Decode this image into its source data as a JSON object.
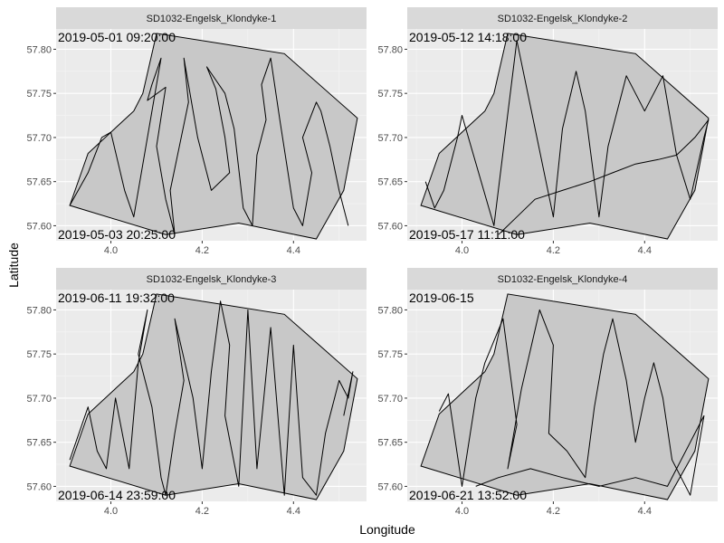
{
  "chart_data": {
    "type": "line",
    "xlabel": "Longitude",
    "ylabel": "Latitude",
    "xlim": [
      3.88,
      4.56
    ],
    "ylim": [
      57.583,
      57.823
    ],
    "x_ticks": [
      "4.0",
      "4.2",
      "4.4"
    ],
    "y_ticks": [
      "57.60",
      "57.65",
      "57.70",
      "57.75",
      "57.80"
    ],
    "grid": true,
    "colors": {
      "panel_bg": "#ebebeb",
      "strip_bg": "#d9d9d9",
      "area_fill": "#c8c8c8",
      "track": "#000000",
      "grid_major": "#ffffff"
    },
    "area_polygon": {
      "lon": [
        3.91,
        3.95,
        4.05,
        4.07,
        4.1,
        4.38,
        4.54,
        4.51,
        4.45,
        4.28,
        4.12,
        3.91
      ],
      "lat": [
        57.623,
        57.682,
        57.73,
        57.75,
        57.818,
        57.795,
        57.722,
        57.64,
        57.585,
        57.603,
        57.59,
        57.623
      ]
    },
    "panels": [
      {
        "title": "SD1032-Engelsk_Klondyke-1",
        "start_label": "2019-05-01 09:20:00",
        "end_label": "2019-05-03 20:25:00",
        "lon": [
          3.91,
          3.95,
          3.98,
          4.0,
          4.03,
          4.05,
          4.08,
          4.11,
          4.09,
          4.08,
          4.12,
          4.1,
          4.12,
          4.14,
          4.13,
          4.15,
          4.17,
          4.16,
          4.19,
          4.22,
          4.26,
          4.25,
          4.23,
          4.21,
          4.25,
          4.27,
          4.29,
          4.31,
          4.32,
          4.34,
          4.33,
          4.35,
          4.37,
          4.4,
          4.42,
          4.44,
          4.42,
          4.45,
          4.46,
          4.48,
          4.5,
          4.52
        ],
        "lat": [
          57.623,
          57.66,
          57.7,
          57.706,
          57.64,
          57.61,
          57.7,
          57.79,
          57.76,
          57.742,
          57.757,
          57.69,
          57.63,
          57.59,
          57.64,
          57.69,
          57.74,
          57.79,
          57.7,
          57.64,
          57.66,
          57.7,
          57.755,
          57.78,
          57.75,
          57.71,
          57.62,
          57.6,
          57.68,
          57.72,
          57.76,
          57.79,
          57.72,
          57.62,
          57.6,
          57.66,
          57.7,
          57.74,
          57.73,
          57.69,
          57.64,
          57.6
        ]
      },
      {
        "title": "SD1032-Engelsk_Klondyke-2",
        "start_label": "2019-05-12 14:18:00",
        "end_label": "2019-05-17 11:11:00",
        "lon": [
          3.92,
          3.94,
          3.96,
          3.99,
          4.0,
          4.07,
          4.12,
          4.2,
          4.22,
          4.25,
          4.27,
          4.3,
          4.32,
          4.36,
          4.4,
          4.44,
          4.47,
          4.5,
          4.53,
          4.54,
          4.51,
          4.47,
          4.43,
          4.38,
          4.33,
          4.28,
          4.22,
          4.16,
          4.12,
          4.08
        ],
        "lat": [
          57.65,
          57.62,
          57.64,
          57.7,
          57.725,
          57.6,
          57.81,
          57.61,
          57.71,
          57.775,
          57.73,
          57.61,
          57.69,
          57.77,
          57.73,
          57.77,
          57.68,
          57.63,
          57.7,
          57.72,
          57.7,
          57.68,
          57.675,
          57.67,
          57.66,
          57.65,
          57.64,
          57.63,
          57.61,
          57.59
        ]
      },
      {
        "title": "SD1032-Engelsk_Klondyke-3",
        "start_label": "2019-06-11 19:32:00",
        "end_label": "2019-06-14 23:59:00",
        "lon": [
          3.91,
          3.93,
          3.95,
          3.97,
          3.99,
          4.01,
          4.04,
          4.06,
          4.08,
          4.06,
          4.09,
          4.11,
          4.12,
          4.14,
          4.16,
          4.14,
          4.18,
          4.2,
          4.22,
          4.24,
          4.26,
          4.25,
          4.28,
          4.3,
          4.32,
          4.35,
          4.38,
          4.4,
          4.42,
          4.45,
          4.47,
          4.5,
          4.52,
          4.53,
          4.51
        ],
        "lat": [
          57.63,
          57.66,
          57.69,
          57.64,
          57.62,
          57.7,
          57.62,
          57.74,
          57.8,
          57.75,
          57.69,
          57.61,
          57.59,
          57.66,
          57.72,
          57.79,
          57.7,
          57.62,
          57.73,
          57.81,
          57.76,
          57.68,
          57.6,
          57.8,
          57.62,
          57.78,
          57.59,
          57.76,
          57.61,
          57.59,
          57.66,
          57.72,
          57.7,
          57.73,
          57.68
        ]
      },
      {
        "title": "SD1032-Engelsk_Klondyke-4",
        "start_label": "2019-06-15",
        "end_label": "2019-06-21 13:52:00",
        "lon": [
          3.95,
          3.97,
          4.0,
          4.03,
          4.05,
          4.09,
          4.12,
          4.1,
          4.13,
          4.17,
          4.2,
          4.19,
          4.23,
          4.27,
          4.29,
          4.31,
          4.33,
          4.36,
          4.38,
          4.4,
          4.42,
          4.44,
          4.46,
          4.5,
          4.53,
          4.45,
          4.38,
          4.3,
          4.22,
          4.15,
          4.08,
          4.03
        ],
        "lat": [
          57.685,
          57.705,
          57.6,
          57.7,
          57.74,
          57.79,
          57.67,
          57.62,
          57.71,
          57.8,
          57.76,
          57.66,
          57.64,
          57.61,
          57.69,
          57.75,
          57.79,
          57.72,
          57.65,
          57.7,
          57.74,
          57.7,
          57.63,
          57.59,
          57.68,
          57.6,
          57.61,
          57.6,
          57.61,
          57.62,
          57.61,
          57.6
        ]
      }
    ]
  }
}
